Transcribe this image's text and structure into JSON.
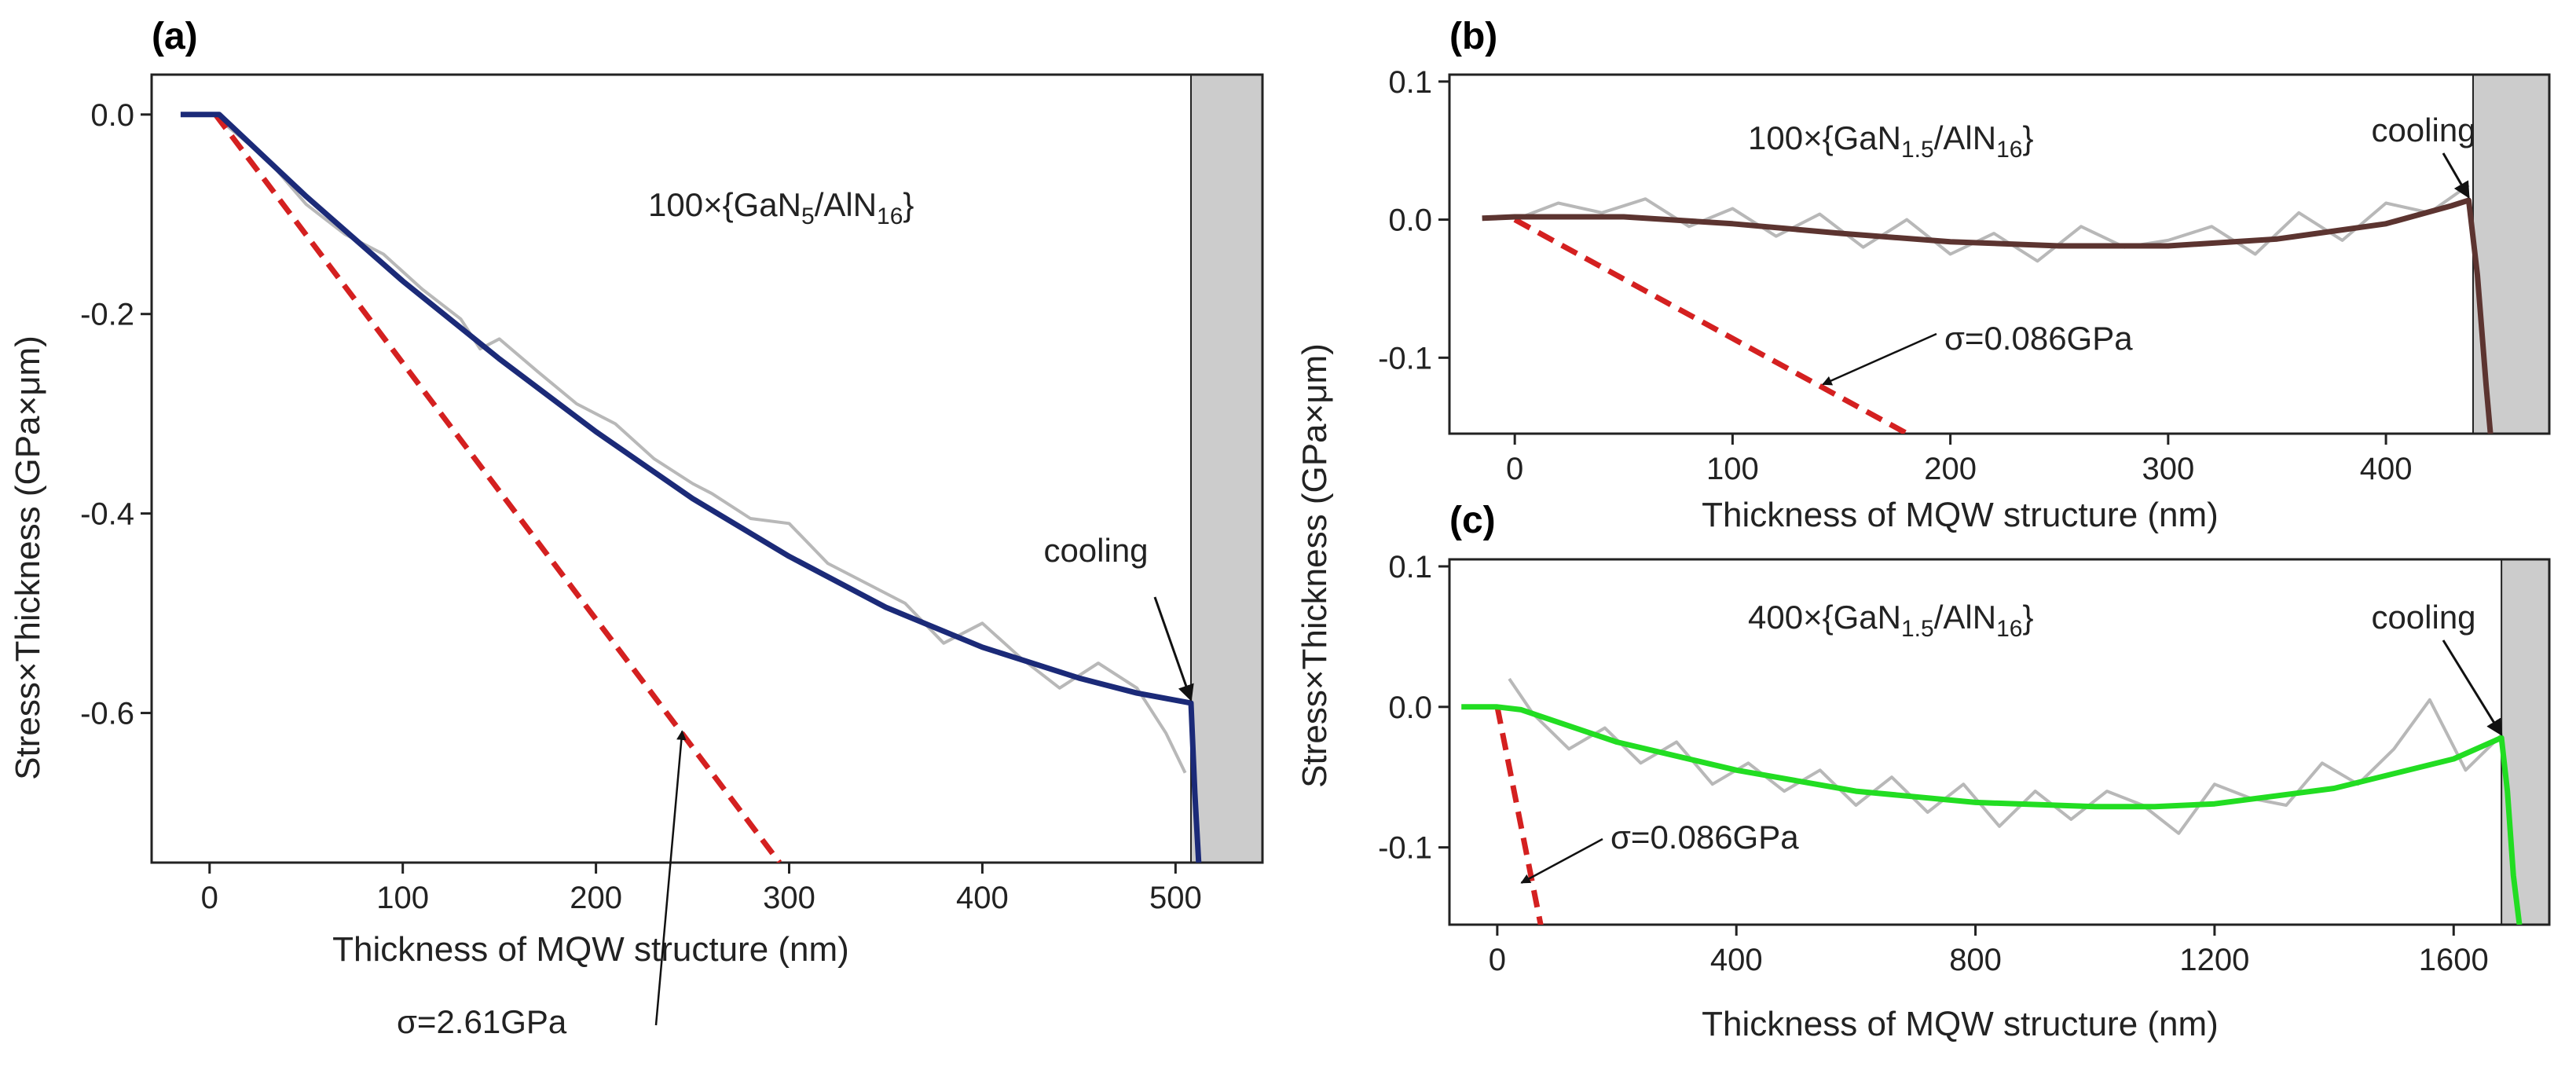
{
  "y_label_shared": "Stress×Thickness (GPa×μm)",
  "chart_data": [
    {
      "panel": "(a)",
      "type": "line",
      "xlabel": "Thickness of MQW structure (nm)",
      "ylabel": "Stress×Thickness (GPa×μm)",
      "xlim": [
        -30,
        545
      ],
      "ylim": [
        -0.75,
        0.04
      ],
      "xticks": [
        0,
        100,
        200,
        300,
        400,
        500
      ],
      "yticks": [
        0.0,
        -0.2,
        -0.4,
        -0.6
      ],
      "xtick_labels": [
        "0",
        "100",
        "200",
        "300",
        "400",
        "500"
      ],
      "ytick_labels": [
        "0.0",
        "-0.2",
        "-0.4",
        "-0.6"
      ],
      "structure_label": {
        "prefix": "100×{GaN",
        "sub1": "5",
        "mid": "/AlN",
        "sub2": "16",
        "suffix": "}"
      },
      "cooling_label": "cooling",
      "cooling_start": 508,
      "cooling_point": [
        508,
        -0.59
      ],
      "sigma_label": "σ=2.61GPa",
      "sigma_arrow_target": [
        243,
        -0.615
      ],
      "fit_color": "#1b2a78",
      "series": [
        {
          "name": "fit",
          "style": "fit",
          "x": [
            -15,
            0,
            5,
            50,
            100,
            150,
            200,
            250,
            300,
            350,
            400,
            450,
            480,
            505,
            508,
            510,
            512
          ],
          "y": [
            0,
            0,
            0,
            -0.082,
            -0.167,
            -0.245,
            -0.318,
            -0.385,
            -0.443,
            -0.494,
            -0.534,
            -0.565,
            -0.58,
            -0.589,
            -0.59,
            -0.68,
            -0.75
          ]
        },
        {
          "name": "measured",
          "style": "measured",
          "x": [
            5,
            30,
            50,
            70,
            90,
            110,
            130,
            140,
            150,
            170,
            190,
            210,
            230,
            250,
            260,
            280,
            300,
            320,
            340,
            360,
            380,
            400,
            420,
            440,
            460,
            480,
            495,
            505
          ],
          "y": [
            -0.005,
            -0.045,
            -0.09,
            -0.12,
            -0.14,
            -0.175,
            -0.205,
            -0.235,
            -0.225,
            -0.258,
            -0.29,
            -0.31,
            -0.345,
            -0.37,
            -0.38,
            -0.405,
            -0.41,
            -0.45,
            -0.47,
            -0.49,
            -0.53,
            -0.51,
            -0.545,
            -0.575,
            -0.55,
            -0.575,
            -0.62,
            -0.66
          ]
        },
        {
          "name": "linear stress",
          "style": "dashed",
          "x": [
            3,
            295
          ],
          "y": [
            0,
            -0.75
          ]
        }
      ]
    },
    {
      "panel": "(b)",
      "type": "line",
      "xlabel": "Thickness of MQW structure (nm)",
      "ylabel": "",
      "xlim": [
        -30,
        475
      ],
      "ylim": [
        -0.155,
        0.105
      ],
      "xticks": [
        0,
        100,
        200,
        300,
        400
      ],
      "yticks": [
        0.1,
        0.0,
        -0.1
      ],
      "xtick_labels": [
        "0",
        "100",
        "200",
        "300",
        "400"
      ],
      "ytick_labels": [
        "0.1",
        "0.0",
        "-0.1"
      ],
      "structure_label": {
        "prefix": "100×{GaN",
        "sub1": "1.5",
        "mid": "/AlN",
        "sub2": "16",
        "suffix": "}"
      },
      "cooling_label": "cooling",
      "cooling_start": 440,
      "cooling_point": [
        438,
        0.014
      ],
      "sigma_label": "σ=0.086GPa",
      "sigma_arrow_target": [
        140,
        -0.117
      ],
      "fit_color": "#5c3430",
      "series": [
        {
          "name": "fit",
          "style": "fit",
          "x": [
            -15,
            0,
            50,
            100,
            150,
            200,
            250,
            300,
            350,
            400,
            430,
            438,
            442,
            446,
            448
          ],
          "y": [
            0.001,
            0.002,
            0.002,
            -0.003,
            -0.01,
            -0.016,
            -0.019,
            -0.019,
            -0.014,
            -0.003,
            0.01,
            0.014,
            -0.04,
            -0.12,
            -0.155
          ]
        },
        {
          "name": "measured",
          "style": "measured",
          "x": [
            0,
            20,
            40,
            60,
            80,
            100,
            120,
            140,
            160,
            180,
            200,
            220,
            240,
            260,
            280,
            300,
            320,
            340,
            360,
            380,
            400,
            420,
            438
          ],
          "y": [
            0.0,
            0.012,
            0.005,
            0.015,
            -0.005,
            0.008,
            -0.012,
            0.004,
            -0.02,
            0.0,
            -0.025,
            -0.01,
            -0.03,
            -0.005,
            -0.02,
            -0.015,
            -0.005,
            -0.025,
            0.005,
            -0.015,
            0.012,
            0.005,
            0.025
          ]
        },
        {
          "name": "linear stress",
          "style": "dashed",
          "x": [
            0,
            186
          ],
          "y": [
            0,
            -0.16
          ]
        }
      ]
    },
    {
      "panel": "(c)",
      "type": "line",
      "xlabel": "Thickness of MQW structure (nm)",
      "ylabel": "",
      "xlim": [
        -80,
        1760
      ],
      "ylim": [
        -0.155,
        0.105
      ],
      "xticks": [
        0,
        400,
        800,
        1200,
        1600
      ],
      "yticks": [
        0.1,
        0.0,
        -0.1
      ],
      "xtick_labels": [
        "0",
        "400",
        "800",
        "1200",
        "1600"
      ],
      "ytick_labels": [
        "0.1",
        "0.0",
        "-0.1"
      ],
      "structure_label": {
        "prefix": "400×{GaN",
        "sub1": "1.5",
        "mid": "/AlN",
        "sub2": "16",
        "suffix": "}"
      },
      "cooling_label": "cooling",
      "cooling_start": 1680,
      "cooling_point": [
        1680,
        -0.022
      ],
      "sigma_label": "σ=0.086GPa",
      "sigma_arrow_target": [
        35,
        -0.123
      ],
      "fit_color": "#22dd22",
      "series": [
        {
          "name": "fit",
          "style": "fit",
          "x": [
            -60,
            0,
            40,
            200,
            400,
            600,
            800,
            1000,
            1100,
            1200,
            1400,
            1600,
            1680,
            1690,
            1700,
            1710
          ],
          "y": [
            0,
            0,
            -0.002,
            -0.025,
            -0.045,
            -0.06,
            -0.068,
            -0.071,
            -0.071,
            -0.069,
            -0.058,
            -0.037,
            -0.022,
            -0.06,
            -0.12,
            -0.155
          ]
        },
        {
          "name": "measured",
          "style": "measured",
          "x": [
            20,
            60,
            120,
            180,
            240,
            300,
            360,
            420,
            480,
            540,
            600,
            660,
            720,
            780,
            840,
            900,
            960,
            1020,
            1080,
            1140,
            1200,
            1260,
            1320,
            1380,
            1440,
            1500,
            1560,
            1620,
            1680
          ],
          "y": [
            0.02,
            -0.005,
            -0.03,
            -0.015,
            -0.04,
            -0.025,
            -0.055,
            -0.04,
            -0.06,
            -0.045,
            -0.07,
            -0.05,
            -0.075,
            -0.055,
            -0.085,
            -0.06,
            -0.08,
            -0.06,
            -0.07,
            -0.09,
            -0.055,
            -0.065,
            -0.07,
            -0.04,
            -0.055,
            -0.03,
            0.005,
            -0.045,
            -0.02
          ]
        },
        {
          "name": "linear stress",
          "style": "dashed",
          "x": [
            0,
            75
          ],
          "y": [
            0,
            -0.16
          ]
        }
      ]
    }
  ]
}
